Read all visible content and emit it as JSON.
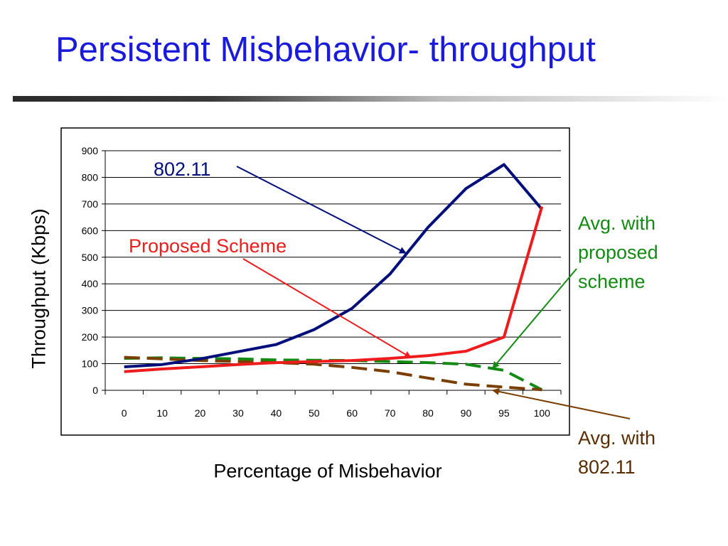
{
  "slide": {
    "title": "Persistent Misbehavior- throughput"
  },
  "colors": {
    "title": "#1a1adb",
    "series_802_11": "#000f7a",
    "series_proposed": "#ee1c1c",
    "series_avg_proposed": "#138a13",
    "series_avg_802_11": "#7a3f00",
    "annotation_avg_proposed": "#138a13",
    "annotation_avg_802_11": "#5a2d00"
  },
  "annotations": {
    "a802": "802.11",
    "proposed": "Proposed Scheme",
    "avg_proposed": [
      "Avg. with",
      "proposed",
      "scheme"
    ],
    "avg_802": [
      "Avg. with",
      "802.11"
    ]
  },
  "chart_data": {
    "type": "line",
    "xlabel": "Percentage of Misbehavior",
    "ylabel": "Throughput (Kbps)",
    "categories": [
      "0",
      "10",
      "20",
      "30",
      "40",
      "50",
      "60",
      "70",
      "80",
      "90",
      "95",
      "100"
    ],
    "ylim": [
      0,
      900
    ],
    "yticks": [
      0,
      100,
      200,
      300,
      400,
      500,
      600,
      700,
      800,
      900
    ],
    "grid": true,
    "series": [
      {
        "label": "802.11",
        "style": "solid",
        "color": "#000f7a",
        "values": [
          88,
          97,
          118,
          145,
          172,
          228,
          308,
          437,
          612,
          758,
          848,
          680
        ]
      },
      {
        "label": "Proposed Scheme",
        "style": "solid",
        "color": "#ee1c1c",
        "values": [
          70,
          80,
          88,
          97,
          104,
          108,
          112,
          120,
          130,
          147,
          200,
          690
        ]
      },
      {
        "label": "Avg. with proposed scheme",
        "style": "dashed",
        "color": "#138a13",
        "values": [
          120,
          122,
          120,
          118,
          114,
          113,
          112,
          108,
          104,
          98,
          75,
          2
        ]
      },
      {
        "label": "Avg. with 802.11",
        "style": "dashed",
        "color": "#7a3f00",
        "values": [
          124,
          118,
          112,
          108,
          104,
          98,
          86,
          70,
          46,
          23,
          12,
          2
        ]
      }
    ]
  }
}
